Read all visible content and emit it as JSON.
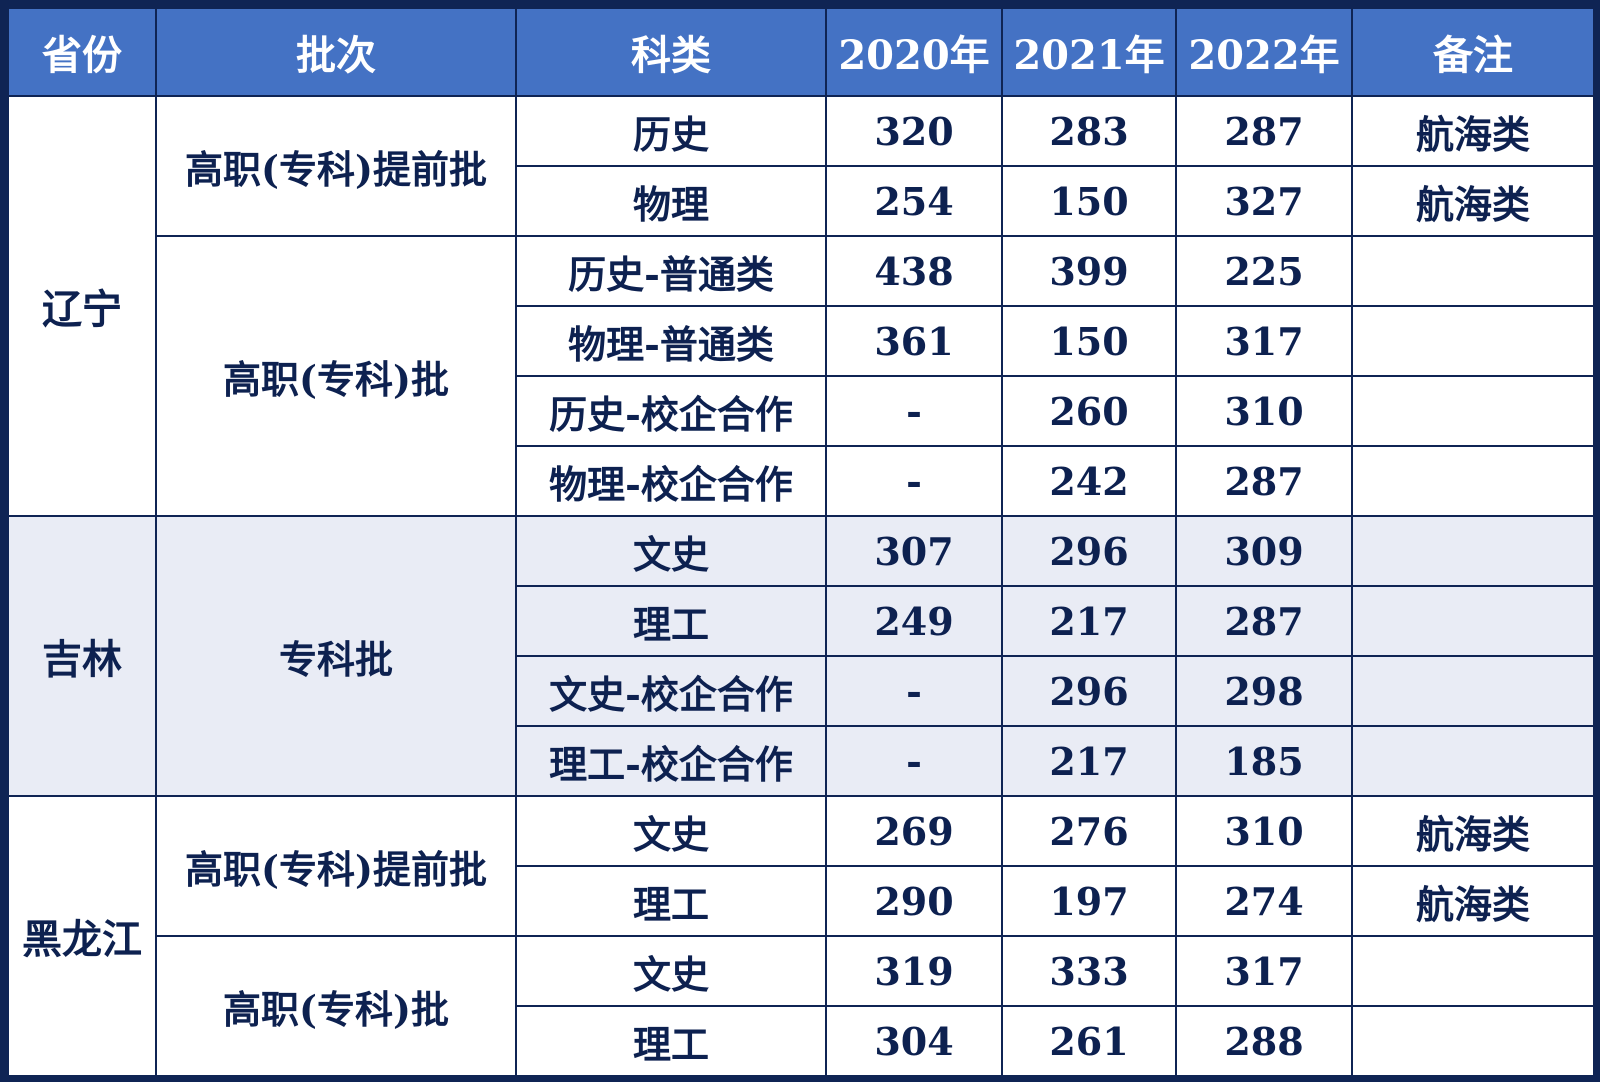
{
  "table": {
    "headers": [
      "省份",
      "批次",
      "科类",
      "2020年",
      "2021年",
      "2022年",
      "备注"
    ],
    "groups": [
      {
        "province": "辽宁",
        "batches": [
          {
            "batch": "高职(专科)提前批",
            "rows": [
              {
                "subject": "历史",
                "y2020": "320",
                "y2021": "283",
                "y2022": "287",
                "note": "航海类"
              },
              {
                "subject": "物理",
                "y2020": "254",
                "y2021": "150",
                "y2022": "327",
                "note": "航海类"
              }
            ]
          },
          {
            "batch": "高职(专科)批",
            "rows": [
              {
                "subject": "历史-普通类",
                "y2020": "438",
                "y2021": "399",
                "y2022": "225",
                "note": ""
              },
              {
                "subject": "物理-普通类",
                "y2020": "361",
                "y2021": "150",
                "y2022": "317",
                "note": ""
              },
              {
                "subject": "历史-校企合作",
                "y2020": "-",
                "y2021": "260",
                "y2022": "310",
                "note": ""
              },
              {
                "subject": "物理-校企合作",
                "y2020": "-",
                "y2021": "242",
                "y2022": "287",
                "note": ""
              }
            ]
          }
        ]
      },
      {
        "province": "吉林",
        "batches": [
          {
            "batch": "专科批",
            "rows": [
              {
                "subject": "文史",
                "y2020": "307",
                "y2021": "296",
                "y2022": "309",
                "note": ""
              },
              {
                "subject": "理工",
                "y2020": "249",
                "y2021": "217",
                "y2022": "287",
                "note": ""
              },
              {
                "subject": "文史-校企合作",
                "y2020": "-",
                "y2021": "296",
                "y2022": "298",
                "note": ""
              },
              {
                "subject": "理工-校企合作",
                "y2020": "-",
                "y2021": "217",
                "y2022": "185",
                "note": ""
              }
            ]
          }
        ]
      },
      {
        "province": "黑龙江",
        "batches": [
          {
            "batch": "高职(专科)提前批",
            "rows": [
              {
                "subject": "文史",
                "y2020": "269",
                "y2021": "276",
                "y2022": "310",
                "note": "航海类"
              },
              {
                "subject": "理工",
                "y2020": "290",
                "y2021": "197",
                "y2022": "274",
                "note": "航海类"
              }
            ]
          },
          {
            "batch": "高职(专科)批",
            "rows": [
              {
                "subject": "文史",
                "y2020": "319",
                "y2021": "333",
                "y2022": "317",
                "note": ""
              },
              {
                "subject": "理工",
                "y2020": "304",
                "y2021": "261",
                "y2022": "288",
                "note": ""
              }
            ]
          }
        ]
      }
    ]
  },
  "colors": {
    "header_bg": "#4472c4",
    "header_text": "#ffffff",
    "body_text": "#0d2150",
    "border": "#0f2454",
    "band_bg": "#e9ecf5"
  }
}
